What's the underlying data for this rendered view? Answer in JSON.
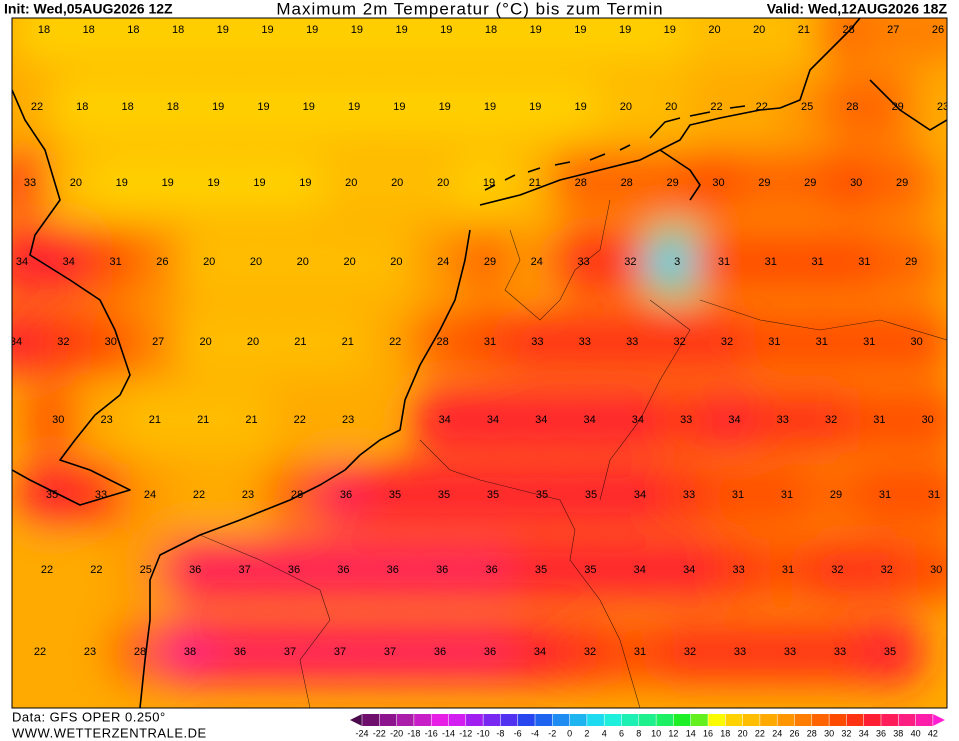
{
  "header": {
    "init": "Init: Wed,05AUG2026 12Z",
    "title": "Maximum 2m Temperatur (°C) bis zum Termin",
    "valid": "Valid: Wed,12AUG2026 18Z"
  },
  "map": {
    "rows": [
      [
        18,
        18,
        18,
        18,
        19,
        19,
        19,
        19,
        19,
        19,
        18,
        19,
        19,
        19,
        19,
        20,
        20,
        21,
        28,
        27,
        26
      ],
      [
        22,
        18,
        18,
        18,
        19,
        19,
        19,
        19,
        19,
        19,
        19,
        19,
        19,
        20,
        20,
        22,
        22,
        25,
        28,
        29,
        23
      ],
      [
        33,
        20,
        19,
        19,
        19,
        19,
        19,
        20,
        20,
        20,
        19,
        21,
        28,
        28,
        29,
        30,
        29,
        29,
        30,
        29
      ],
      [
        34,
        34,
        31,
        26,
        20,
        20,
        20,
        20,
        20,
        24,
        29,
        24,
        33,
        32,
        3,
        31,
        31,
        31,
        31,
        29
      ],
      [
        34,
        32,
        30,
        27,
        20,
        20,
        21,
        21,
        22,
        28,
        31,
        33,
        33,
        33,
        32,
        32,
        31,
        31,
        31,
        30
      ],
      [
        null,
        30,
        23,
        21,
        21,
        21,
        22,
        23,
        null,
        34,
        34,
        34,
        34,
        34,
        33,
        34,
        33,
        32,
        31,
        30
      ],
      [
        35,
        33,
        24,
        22,
        23,
        28,
        36,
        35,
        35,
        35,
        35,
        35,
        34,
        33,
        31,
        31,
        29,
        31,
        31
      ],
      [
        22,
        22,
        25,
        36,
        37,
        36,
        36,
        36,
        36,
        36,
        35,
        35,
        34,
        34,
        33,
        31,
        32,
        32,
        30
      ],
      [
        22,
        23,
        28,
        38,
        36,
        37,
        37,
        37,
        36,
        36,
        34,
        32,
        31,
        32,
        33,
        33,
        33,
        35
      ]
    ]
  },
  "legend": {
    "labels": [
      -24,
      -22,
      -20,
      -18,
      -16,
      -14,
      -12,
      -10,
      -8,
      -6,
      -4,
      -2,
      0,
      2,
      4,
      6,
      8,
      10,
      12,
      14,
      16,
      18,
      20,
      22,
      24,
      26,
      28,
      30,
      32,
      34,
      36,
      38,
      40,
      42
    ],
    "colors": [
      "#4b0a4b",
      "#6e0f6e",
      "#8c148c",
      "#aa1eaa",
      "#c81ec8",
      "#e61ee6",
      "#d21ef0",
      "#a01ef0",
      "#7828f0",
      "#5032f0",
      "#2846f0",
      "#1e64f0",
      "#1e8cf0",
      "#1eb4f0",
      "#1edcf0",
      "#1ef0dc",
      "#1ef0b4",
      "#1ef08c",
      "#1ef064",
      "#1ef028",
      "#64f01e",
      "#fafa00",
      "#ffd200",
      "#ffbe00",
      "#ffaa00",
      "#ff9600",
      "#ff7d00",
      "#ff6400",
      "#ff4b00",
      "#ff3214",
      "#ff1e32",
      "#ff1e5a",
      "#ff1e82",
      "#ff1eaa",
      "#ff1ed2"
    ]
  },
  "footer": {
    "data": "Data: GFS OPER 0.250°",
    "site": "WWW.WETTERZENTRALE.DE"
  }
}
